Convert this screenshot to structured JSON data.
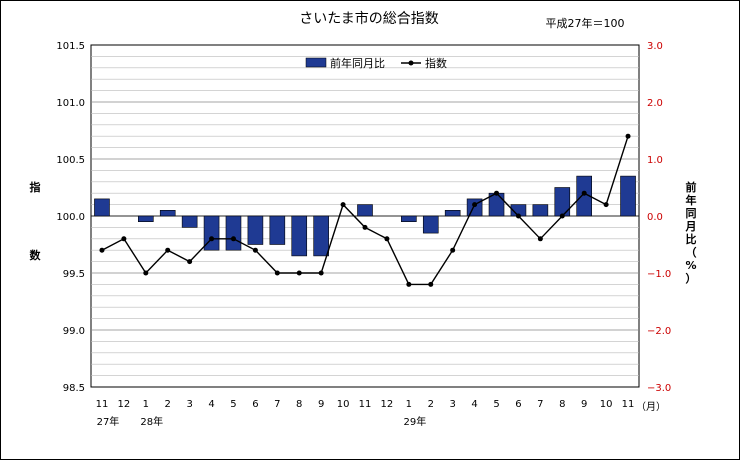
{
  "chart_data": {
    "type": "bar+line",
    "title": "さいたま市の総合指数",
    "base_note": "平成27年＝100",
    "categories": [
      "11",
      "12",
      "1",
      "2",
      "3",
      "4",
      "5",
      "6",
      "7",
      "8",
      "9",
      "10",
      "11",
      "12",
      "1",
      "2",
      "3",
      "4",
      "5",
      "6",
      "7",
      "8",
      "9",
      "10",
      "11"
    ],
    "year_labels": [
      {
        "label": "27年",
        "at_index": 0
      },
      {
        "label": "28年",
        "at_index": 2
      },
      {
        "label": "29年",
        "at_index": 14
      }
    ],
    "x_unit": "（月）",
    "left_axis": {
      "label": [
        "指",
        "数"
      ],
      "ylim": [
        98.5,
        101.5
      ],
      "ticks": [
        "98.5",
        "99.0",
        "99.5",
        "100.0",
        "100.5",
        "101.0",
        "101.5"
      ]
    },
    "right_axis": {
      "label": "前年同月比（%）",
      "ylim": [
        -3.0,
        3.0
      ],
      "ticks": [
        "−3.0",
        "−2.0",
        "−1.0",
        "0.0",
        "1.0",
        "2.0",
        "3.0"
      ]
    },
    "series": [
      {
        "name": "前年同月比",
        "kind": "bar",
        "axis": "left",
        "color": "#1f3a93",
        "values": [
          100.15,
          100.0,
          99.95,
          100.05,
          99.9,
          99.7,
          99.7,
          99.75,
          99.75,
          99.65,
          99.65,
          100.0,
          100.1,
          100.0,
          99.95,
          99.85,
          100.05,
          100.15,
          100.2,
          100.1,
          100.1,
          100.25,
          100.35,
          100.0,
          100.35
        ]
      },
      {
        "name": "指数",
        "kind": "line",
        "axis": "right",
        "color": "#000000",
        "values": [
          -0.6,
          -0.4,
          -1.0,
          -0.6,
          -0.8,
          -0.4,
          -0.4,
          -0.6,
          -1.0,
          -1.0,
          -1.0,
          0.2,
          -0.2,
          -0.4,
          -1.2,
          -1.2,
          -0.6,
          0.2,
          0.4,
          0.0,
          -0.4,
          0.0,
          0.4,
          0.2,
          1.4
        ]
      }
    ],
    "grid": true,
    "legend_position": "top-center"
  }
}
